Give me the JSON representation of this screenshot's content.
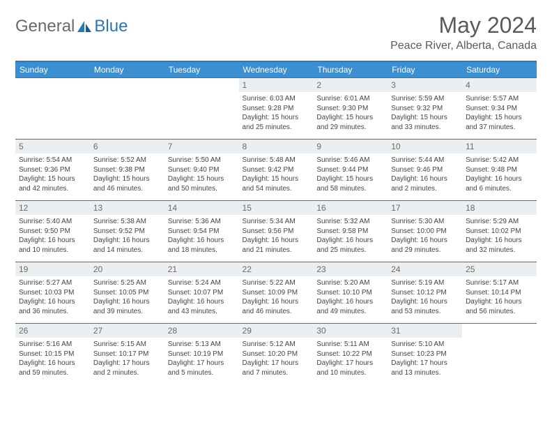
{
  "brand": {
    "general": "General",
    "blue": "Blue"
  },
  "title": "May 2024",
  "location": "Peace River, Alberta, Canada",
  "colors": {
    "header_bg": "#3b8fd1",
    "header_border": "#2a77b8",
    "daynum_bg": "#eceff1",
    "text": "#444444"
  },
  "weekdays": [
    "Sunday",
    "Monday",
    "Tuesday",
    "Wednesday",
    "Thursday",
    "Friday",
    "Saturday"
  ],
  "weeks": [
    [
      {
        "empty": true
      },
      {
        "empty": true
      },
      {
        "empty": true
      },
      {
        "num": "1",
        "sunrise": "Sunrise: 6:03 AM",
        "sunset": "Sunset: 9:28 PM",
        "daylight": "Daylight: 15 hours and 25 minutes."
      },
      {
        "num": "2",
        "sunrise": "Sunrise: 6:01 AM",
        "sunset": "Sunset: 9:30 PM",
        "daylight": "Daylight: 15 hours and 29 minutes."
      },
      {
        "num": "3",
        "sunrise": "Sunrise: 5:59 AM",
        "sunset": "Sunset: 9:32 PM",
        "daylight": "Daylight: 15 hours and 33 minutes."
      },
      {
        "num": "4",
        "sunrise": "Sunrise: 5:57 AM",
        "sunset": "Sunset: 9:34 PM",
        "daylight": "Daylight: 15 hours and 37 minutes."
      }
    ],
    [
      {
        "num": "5",
        "sunrise": "Sunrise: 5:54 AM",
        "sunset": "Sunset: 9:36 PM",
        "daylight": "Daylight: 15 hours and 42 minutes."
      },
      {
        "num": "6",
        "sunrise": "Sunrise: 5:52 AM",
        "sunset": "Sunset: 9:38 PM",
        "daylight": "Daylight: 15 hours and 46 minutes."
      },
      {
        "num": "7",
        "sunrise": "Sunrise: 5:50 AM",
        "sunset": "Sunset: 9:40 PM",
        "daylight": "Daylight: 15 hours and 50 minutes."
      },
      {
        "num": "8",
        "sunrise": "Sunrise: 5:48 AM",
        "sunset": "Sunset: 9:42 PM",
        "daylight": "Daylight: 15 hours and 54 minutes."
      },
      {
        "num": "9",
        "sunrise": "Sunrise: 5:46 AM",
        "sunset": "Sunset: 9:44 PM",
        "daylight": "Daylight: 15 hours and 58 minutes."
      },
      {
        "num": "10",
        "sunrise": "Sunrise: 5:44 AM",
        "sunset": "Sunset: 9:46 PM",
        "daylight": "Daylight: 16 hours and 2 minutes."
      },
      {
        "num": "11",
        "sunrise": "Sunrise: 5:42 AM",
        "sunset": "Sunset: 9:48 PM",
        "daylight": "Daylight: 16 hours and 6 minutes."
      }
    ],
    [
      {
        "num": "12",
        "sunrise": "Sunrise: 5:40 AM",
        "sunset": "Sunset: 9:50 PM",
        "daylight": "Daylight: 16 hours and 10 minutes."
      },
      {
        "num": "13",
        "sunrise": "Sunrise: 5:38 AM",
        "sunset": "Sunset: 9:52 PM",
        "daylight": "Daylight: 16 hours and 14 minutes."
      },
      {
        "num": "14",
        "sunrise": "Sunrise: 5:36 AM",
        "sunset": "Sunset: 9:54 PM",
        "daylight": "Daylight: 16 hours and 18 minutes."
      },
      {
        "num": "15",
        "sunrise": "Sunrise: 5:34 AM",
        "sunset": "Sunset: 9:56 PM",
        "daylight": "Daylight: 16 hours and 21 minutes."
      },
      {
        "num": "16",
        "sunrise": "Sunrise: 5:32 AM",
        "sunset": "Sunset: 9:58 PM",
        "daylight": "Daylight: 16 hours and 25 minutes."
      },
      {
        "num": "17",
        "sunrise": "Sunrise: 5:30 AM",
        "sunset": "Sunset: 10:00 PM",
        "daylight": "Daylight: 16 hours and 29 minutes."
      },
      {
        "num": "18",
        "sunrise": "Sunrise: 5:29 AM",
        "sunset": "Sunset: 10:02 PM",
        "daylight": "Daylight: 16 hours and 32 minutes."
      }
    ],
    [
      {
        "num": "19",
        "sunrise": "Sunrise: 5:27 AM",
        "sunset": "Sunset: 10:03 PM",
        "daylight": "Daylight: 16 hours and 36 minutes."
      },
      {
        "num": "20",
        "sunrise": "Sunrise: 5:25 AM",
        "sunset": "Sunset: 10:05 PM",
        "daylight": "Daylight: 16 hours and 39 minutes."
      },
      {
        "num": "21",
        "sunrise": "Sunrise: 5:24 AM",
        "sunset": "Sunset: 10:07 PM",
        "daylight": "Daylight: 16 hours and 43 minutes."
      },
      {
        "num": "22",
        "sunrise": "Sunrise: 5:22 AM",
        "sunset": "Sunset: 10:09 PM",
        "daylight": "Daylight: 16 hours and 46 minutes."
      },
      {
        "num": "23",
        "sunrise": "Sunrise: 5:20 AM",
        "sunset": "Sunset: 10:10 PM",
        "daylight": "Daylight: 16 hours and 49 minutes."
      },
      {
        "num": "24",
        "sunrise": "Sunrise: 5:19 AM",
        "sunset": "Sunset: 10:12 PM",
        "daylight": "Daylight: 16 hours and 53 minutes."
      },
      {
        "num": "25",
        "sunrise": "Sunrise: 5:17 AM",
        "sunset": "Sunset: 10:14 PM",
        "daylight": "Daylight: 16 hours and 56 minutes."
      }
    ],
    [
      {
        "num": "26",
        "sunrise": "Sunrise: 5:16 AM",
        "sunset": "Sunset: 10:15 PM",
        "daylight": "Daylight: 16 hours and 59 minutes."
      },
      {
        "num": "27",
        "sunrise": "Sunrise: 5:15 AM",
        "sunset": "Sunset: 10:17 PM",
        "daylight": "Daylight: 17 hours and 2 minutes."
      },
      {
        "num": "28",
        "sunrise": "Sunrise: 5:13 AM",
        "sunset": "Sunset: 10:19 PM",
        "daylight": "Daylight: 17 hours and 5 minutes."
      },
      {
        "num": "29",
        "sunrise": "Sunrise: 5:12 AM",
        "sunset": "Sunset: 10:20 PM",
        "daylight": "Daylight: 17 hours and 7 minutes."
      },
      {
        "num": "30",
        "sunrise": "Sunrise: 5:11 AM",
        "sunset": "Sunset: 10:22 PM",
        "daylight": "Daylight: 17 hours and 10 minutes."
      },
      {
        "num": "31",
        "sunrise": "Sunrise: 5:10 AM",
        "sunset": "Sunset: 10:23 PM",
        "daylight": "Daylight: 17 hours and 13 minutes."
      },
      {
        "empty": true
      }
    ]
  ]
}
